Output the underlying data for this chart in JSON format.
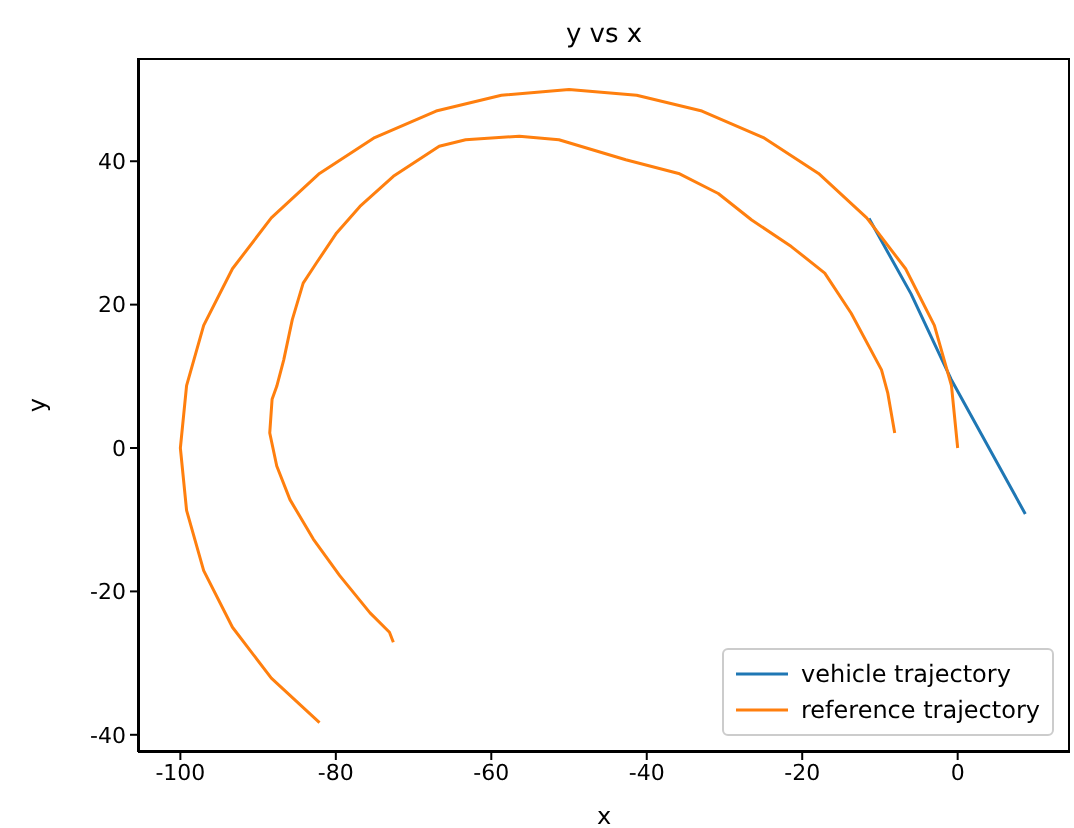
{
  "chart_data": {
    "type": "line",
    "title": "y vs x",
    "xlabel": "x",
    "ylabel": "y",
    "xlim": [
      -105.45,
      14.45
    ],
    "ylim": [
      -42.4,
      54.4
    ],
    "xticks": [
      -100,
      -80,
      -60,
      -40,
      -20,
      0
    ],
    "yticks": [
      -40,
      -20,
      0,
      20,
      40
    ],
    "grid": false,
    "legend": "bottom right",
    "marker": "none",
    "line_style": "solid",
    "series": [
      {
        "name": "vehicle trajectory",
        "color": "#1f77b4",
        "x": [
          -11.4,
          -6,
          -0.85,
          8.7
        ],
        "values": [
          32,
          21.5,
          9.6,
          -9.2
        ]
      },
      {
        "name": "reference trajectory",
        "color": "#ff7f0e",
        "x": [
          -82.1,
          -88.3,
          -93.3,
          -97.0,
          -99.2,
          -100,
          -99.2,
          -97.0,
          -93.3,
          -88.3,
          -82.1,
          -75,
          -67.1,
          -58.7,
          -50,
          -41.3,
          -32.9,
          -25,
          -17.9,
          -11.7,
          -6.7,
          -3.0,
          -0.8,
          0,
          null,
          -72.6,
          -73.1,
          -75.6,
          -79.5,
          -82.9,
          -85.9,
          -87.6,
          -88.5,
          -88.2,
          -87.6,
          -86.7,
          -85.6,
          -84.2,
          -82.5,
          -79.9,
          -76.9,
          -72.6,
          -66.7,
          -63.3,
          -56.4,
          -51.3,
          -42.7,
          -35.9,
          -30.8,
          -26.5,
          -21.4,
          -17.1,
          -13.7,
          -9.8,
          -9.0,
          -8.1
        ],
        "values": [
          -38.3,
          -32.1,
          -25,
          -17.1,
          -8.7,
          0,
          8.7,
          17.1,
          25,
          32.1,
          38.3,
          43.3,
          47.0,
          49.2,
          50,
          49.2,
          47.0,
          43.3,
          38.3,
          32.1,
          25,
          17.1,
          8.7,
          0,
          null,
          -27.1,
          -25.7,
          -23.0,
          -17.8,
          -12.7,
          -7.2,
          -2.5,
          2.1,
          6.8,
          8.6,
          12.3,
          17.9,
          23.0,
          25.8,
          30.0,
          33.7,
          37.9,
          42.1,
          43.0,
          43.5,
          43.0,
          40.2,
          38.3,
          35.5,
          31.8,
          28.1,
          24.4,
          18.8,
          10.9,
          7.7,
          2.1
        ]
      }
    ]
  }
}
